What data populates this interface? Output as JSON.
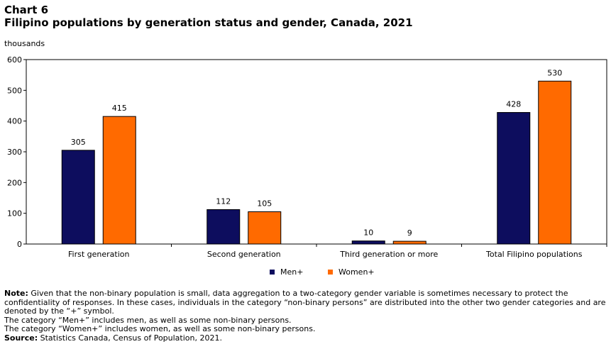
{
  "header": {
    "chart_label": "Chart 6",
    "title": "Filipino  populations  by generation status and gender, Canada, 2021",
    "units": "thousands"
  },
  "colors": {
    "men": "#0d0d5e",
    "women": "#ff6a00"
  },
  "chart_data": {
    "type": "bar",
    "title": "Filipino  populations  by generation status and gender, Canada, 2021",
    "ylabel": "thousands",
    "categories": [
      "First generation",
      "Second generation",
      "Third generation or more",
      "Total Filipino populations"
    ],
    "series": [
      {
        "name": "Men+",
        "values": [
          305,
          112,
          10,
          428
        ]
      },
      {
        "name": "Women+",
        "values": [
          415,
          105,
          9,
          530
        ]
      }
    ],
    "ylim": [
      0,
      600
    ],
    "yticks": [
      0,
      100,
      200,
      300,
      400,
      500,
      600
    ],
    "grid": false,
    "legend_position": "bottom"
  },
  "notes": {
    "note_label": "Note:",
    "note_text": " Given that the non-binary population is small, data aggregation to a two-category gender variable is sometimes necessary to protect the confidentiality of responses. In these cases, individuals in the category “non-binary persons” are distributed into the other two gender categories and are denoted by the “+” symbol.",
    "men_note": "The category “Men+” includes men, as well as some non-binary persons.",
    "women_note": "The category “Women+” includes women, as well as some non-binary persons.",
    "source_label": "Source:",
    "source_text": " Statistics Canada, Census of Population, 2021."
  }
}
